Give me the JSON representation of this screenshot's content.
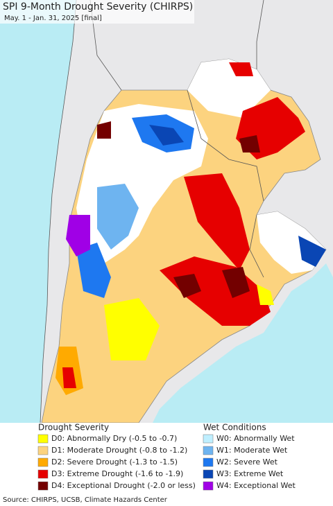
{
  "header": {
    "title": "SPI 9-Month Drought Severity (CHIRPS)",
    "subtitle": "May. 1 - Jan. 31, 2025 [final]"
  },
  "legend": {
    "drought": {
      "title": "Drought Severity",
      "items": [
        {
          "label": "D0: Abnormally Dry (-0.5 to -0.7)",
          "color": "#ffff00"
        },
        {
          "label": "D1: Moderate Drought (-0.8 to -1.2)",
          "color": "#fcd37f"
        },
        {
          "label": "D2: Severe Drought (-1.3 to -1.5)",
          "color": "#ffaa00"
        },
        {
          "label": "D3: Extreme Drought (-1.6 to -1.9)",
          "color": "#e60000"
        },
        {
          "label": "D4: Exceptional Drought (-2.0 or less)",
          "color": "#730000"
        }
      ]
    },
    "wet": {
      "title": "Wet Conditions",
      "items": [
        {
          "label": "W0: Abnormally Wet",
          "color": "#bfefff"
        },
        {
          "label": "W1: Moderate Wet",
          "color": "#6eb4f0"
        },
        {
          "label": "W2: Severe Wet",
          "color": "#1e78f0"
        },
        {
          "label": "W3: Extreme Wet",
          "color": "#0a46b4"
        },
        {
          "label": "W4: Exceptional Wet",
          "color": "#a000e6"
        }
      ]
    }
  },
  "footer": {
    "source": "Source: CHIRPS, UCSB, Climate Hazards Center"
  }
}
